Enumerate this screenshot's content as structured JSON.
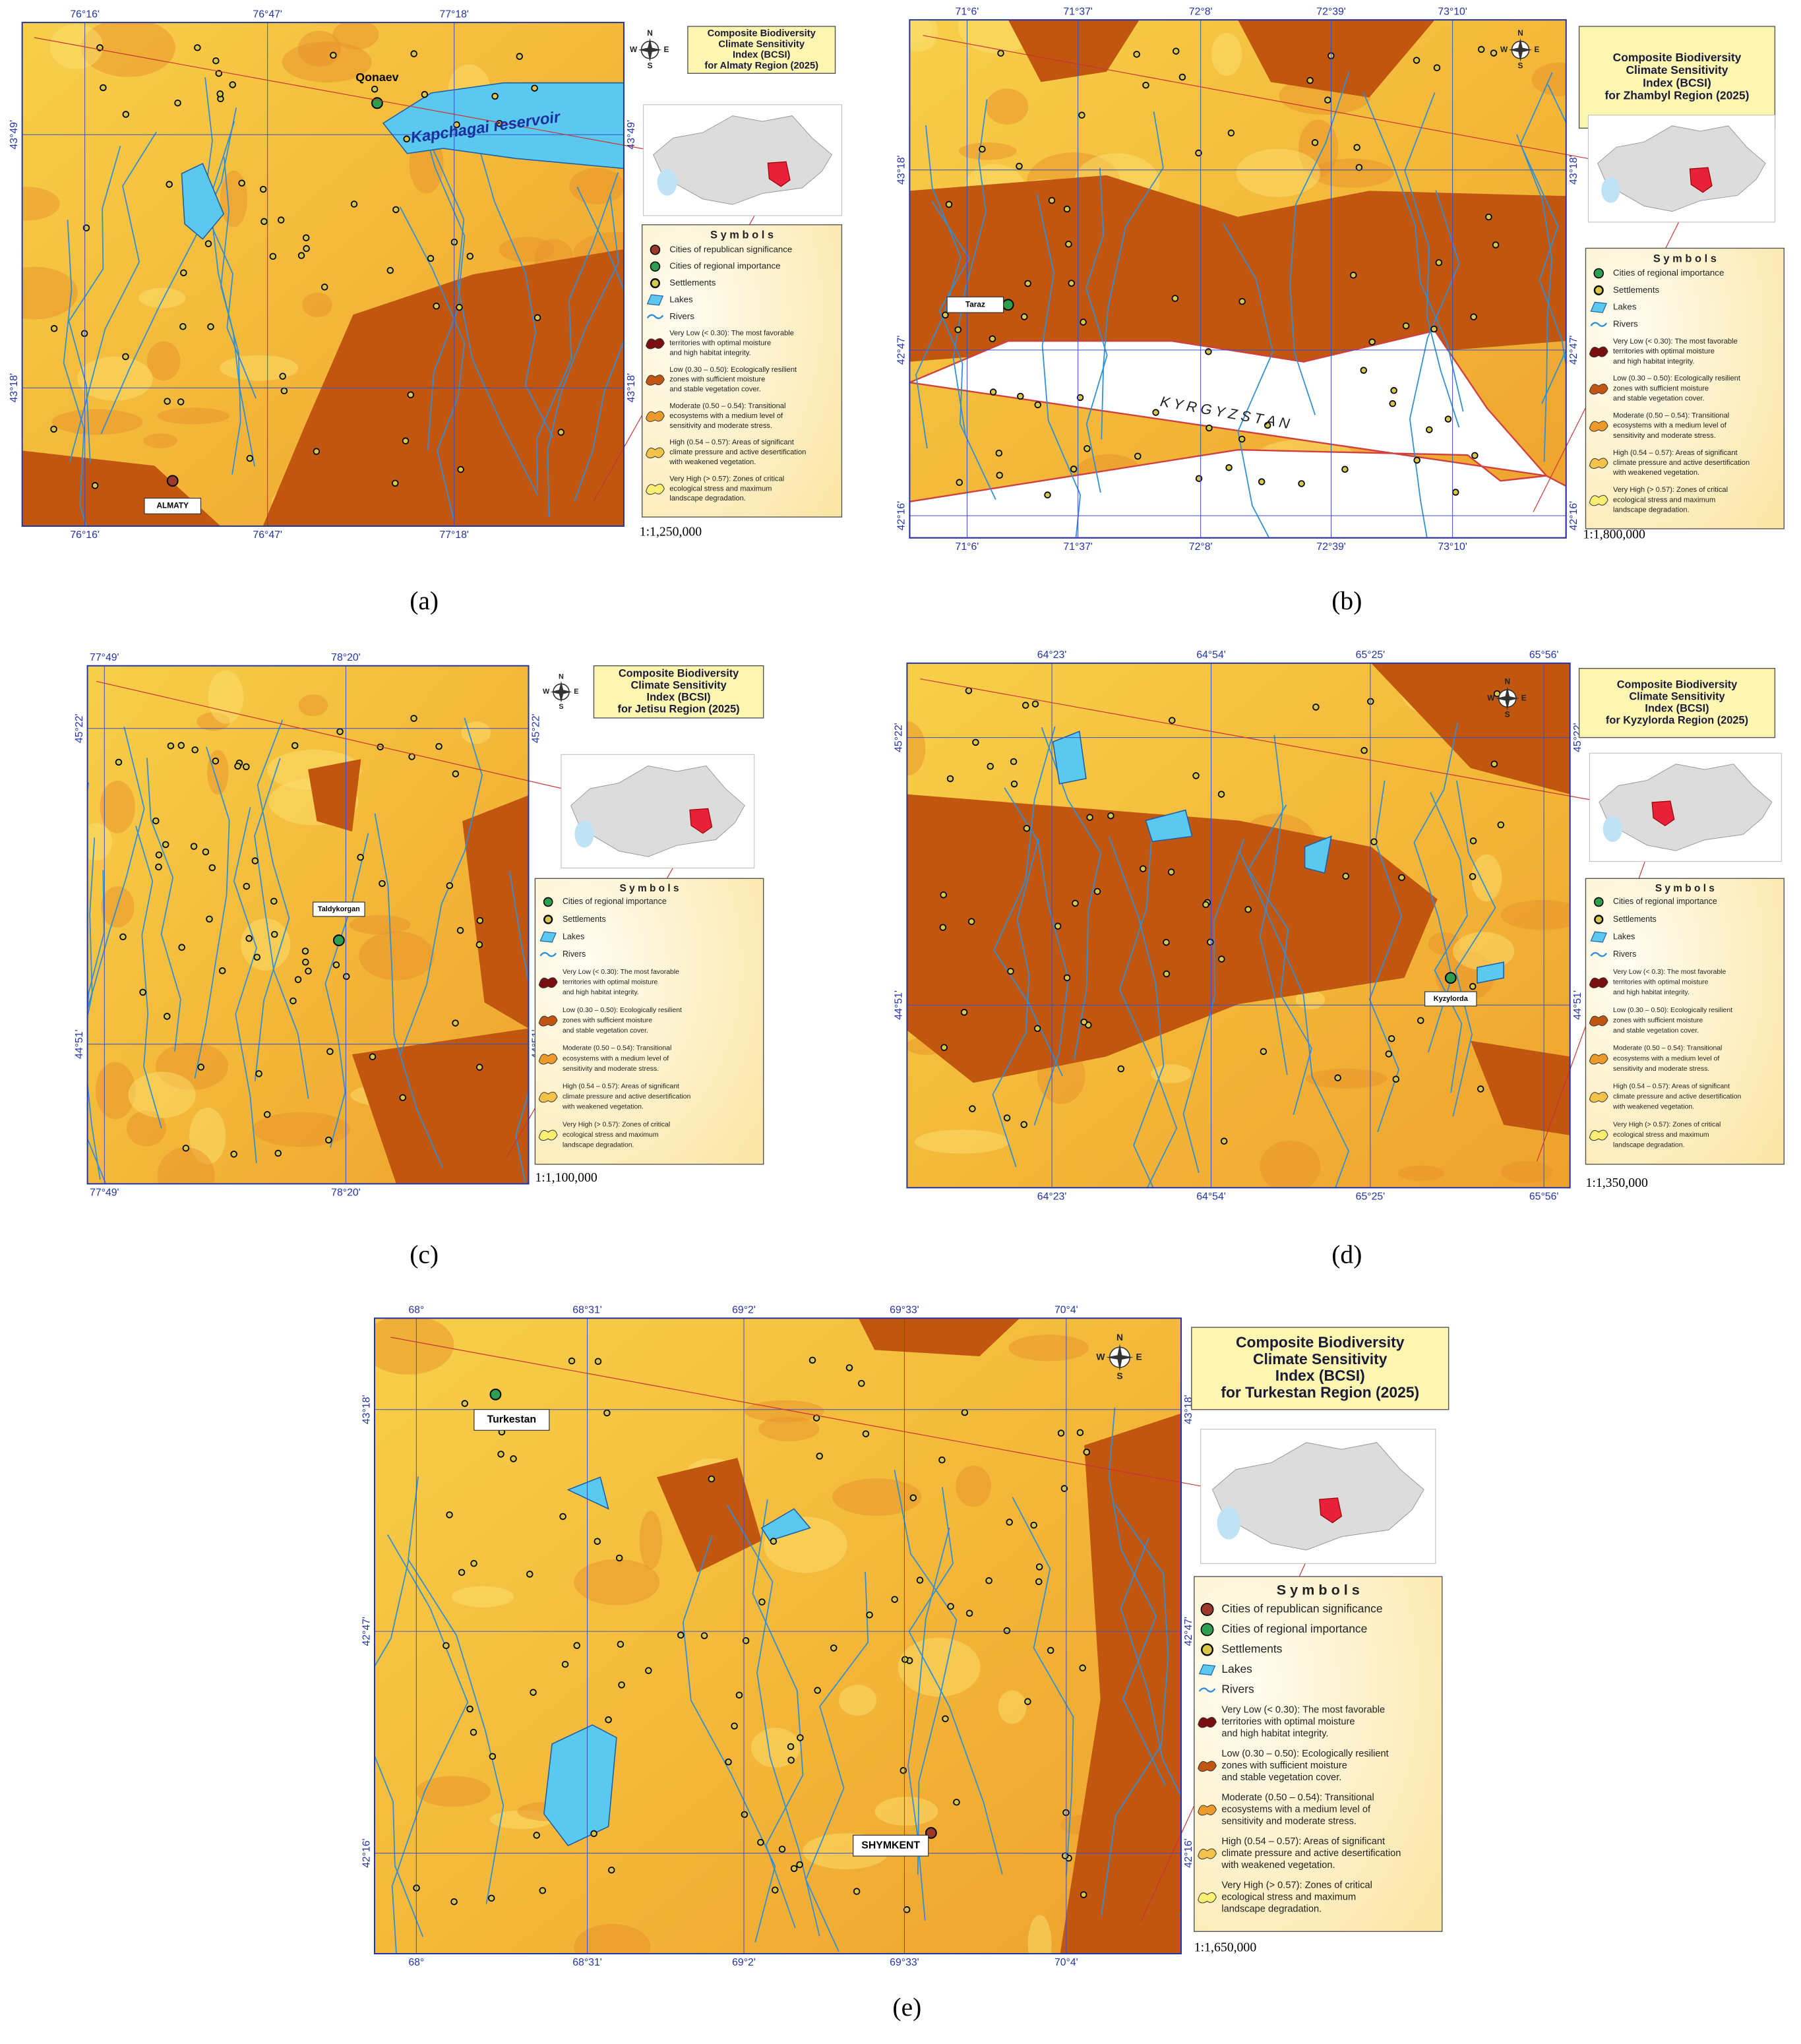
{
  "compass_letters": [
    "N",
    "E",
    "S",
    "W"
  ],
  "legend_heading": "S y m b o l s",
  "panels": [
    {
      "caption": "(a)",
      "title_lines": [
        "Composite Biodiversity",
        "Climate Sensitivity",
        "Index (BCSI)",
        "for Almaty Region (2025)"
      ],
      "lon_ticks": [
        "76°16'",
        "76°47'",
        "77°18'"
      ],
      "lat_ticks": [
        "43°49'",
        "43°18'"
      ],
      "scale": "1:1,250,000",
      "places": [
        "Qonaev",
        "Kapchagai reservoir",
        "ALMATY"
      ],
      "legend": [
        {
          "symbol": "city",
          "color": "#9b3a2a",
          "lines": [
            "Cities of republican significance"
          ]
        },
        {
          "symbol": "city",
          "color": "#2e9e4f",
          "lines": [
            "Cities of regional importance"
          ]
        },
        {
          "symbol": "dot",
          "color": "#000000",
          "lines": [
            "Settlements"
          ]
        },
        {
          "symbol": "lake",
          "color": "#5bc8ef",
          "lines": [
            "Lakes"
          ]
        },
        {
          "symbol": "river",
          "color": "#2f8fd8",
          "lines": [
            "Rivers"
          ]
        },
        {
          "symbol": "patch",
          "color": "#7a0f0f",
          "lines": [
            "Very Low (< 0.30): The most favorable",
            "territories with optimal moisture",
            "and high habitat integrity."
          ]
        },
        {
          "symbol": "patch",
          "color": "#c0560f",
          "lines": [
            "Low (0.30 – 0.50): Ecologically resilient",
            "zones with sufficient moisture",
            "and stable vegetation cover."
          ]
        },
        {
          "symbol": "patch",
          "color": "#ee9a2a",
          "lines": [
            "Moderate (0.50 – 0.54): Transitional",
            "ecosystems with a medium level of",
            "sensitivity and moderate stress."
          ]
        },
        {
          "symbol": "patch",
          "color": "#f3c24a",
          "lines": [
            "High (0.54 – 0.57): Areas of significant",
            "climate pressure and active desertification",
            "with weakened vegetation."
          ]
        },
        {
          "symbol": "patch",
          "color": "#fbef73",
          "lines": [
            "Very High (> 0.57): Zones of critical",
            "ecological stress and maximum",
            "landscape degradation."
          ]
        }
      ]
    },
    {
      "caption": "(b)",
      "title_lines": [
        "Composite Biodiversity",
        "Climate Sensitivity",
        "Index (BCSI)",
        "for Zhambyl Region (2025)"
      ],
      "lon_ticks": [
        "71°6'",
        "71°37'",
        "72°8'",
        "72°39'",
        "73°10'"
      ],
      "lat_ticks": [
        "43°18'",
        "42°47'",
        "42°16'"
      ],
      "scale": "1:1,800,000",
      "places": [
        "Taraz",
        "K Y R G Y Z S T A N"
      ],
      "legend": [
        {
          "symbol": "city",
          "color": "#2e9e4f",
          "lines": [
            "Cities of regional importance"
          ]
        },
        {
          "symbol": "dot",
          "color": "#000000",
          "lines": [
            "Settlements"
          ]
        },
        {
          "symbol": "lake",
          "color": "#5bc8ef",
          "lines": [
            "Lakes"
          ]
        },
        {
          "symbol": "river",
          "color": "#2f8fd8",
          "lines": [
            "Rivers"
          ]
        },
        {
          "symbol": "patch",
          "color": "#7a0f0f",
          "lines": [
            "Very Low (< 0.30): The most favorable",
            "territories with optimal moisture",
            "and high habitat integrity."
          ]
        },
        {
          "symbol": "patch",
          "color": "#c0560f",
          "lines": [
            "Low (0.30 – 0.50): Ecologically resilient",
            "zones with sufficient moisture",
            "and stable vegetation cover."
          ]
        },
        {
          "symbol": "patch",
          "color": "#ee9a2a",
          "lines": [
            "Moderate (0.50 – 0.54): Transitional",
            "ecosystems with a medium level of",
            "sensitivity and moderate stress."
          ]
        },
        {
          "symbol": "patch",
          "color": "#f3c24a",
          "lines": [
            "High (0.54 – 0.57): Areas of significant",
            "climate pressure and active desertification",
            "with weakened vegetation."
          ]
        },
        {
          "symbol": "patch",
          "color": "#fbef73",
          "lines": [
            "Very High (> 0.57): Zones of critical",
            "ecological stress and maximum",
            "landscape degradation."
          ]
        }
      ]
    },
    {
      "caption": "(c)",
      "title_lines": [
        "Composite Biodiversity",
        "Climate Sensitivity",
        "Index (BCSI)",
        "for Jetisu Region (2025)"
      ],
      "lon_ticks": [
        "77°49'",
        "78°20'"
      ],
      "lat_ticks": [
        "45°22'",
        "44°51'"
      ],
      "scale": "1:1,100,000",
      "places": [
        "Taldykorgan"
      ],
      "legend": [
        {
          "symbol": "city",
          "color": "#2e9e4f",
          "lines": [
            "Cities of regional importance"
          ]
        },
        {
          "symbol": "dot",
          "color": "#000000",
          "lines": [
            "Settlements"
          ]
        },
        {
          "symbol": "lake",
          "color": "#5bc8ef",
          "lines": [
            "Lakes"
          ]
        },
        {
          "symbol": "river",
          "color": "#2f8fd8",
          "lines": [
            "Rivers"
          ]
        },
        {
          "symbol": "patch",
          "color": "#7a0f0f",
          "lines": [
            "Very Low (< 0.30): The most favorable",
            "territories with optimal moisture",
            "and high habitat integrity."
          ]
        },
        {
          "symbol": "patch",
          "color": "#c0560f",
          "lines": [
            "Low (0.30 – 0.50): Ecologically resilient",
            "zones with sufficient moisture",
            "and stable vegetation cover."
          ]
        },
        {
          "symbol": "patch",
          "color": "#ee9a2a",
          "lines": [
            "Moderate (0.50 – 0.54): Transitional",
            "ecosystems with a medium level of",
            "sensitivity and moderate stress."
          ]
        },
        {
          "symbol": "patch",
          "color": "#f3c24a",
          "lines": [
            "High (0.54 – 0.57): Areas of significant",
            "climate pressure and active desertification",
            "with weakened vegetation."
          ]
        },
        {
          "symbol": "patch",
          "color": "#fbef73",
          "lines": [
            "Very High (> 0.57): Zones of critical",
            "ecological stress and maximum",
            "landscape degradation."
          ]
        }
      ]
    },
    {
      "caption": "(d)",
      "title_lines": [
        "Composite Biodiversity",
        "Climate Sensitivity",
        "Index (BCSI)",
        "for Kyzylorda Region (2025)"
      ],
      "lon_ticks": [
        "64°23'",
        "64°54'",
        "65°25'",
        "65°56'"
      ],
      "lat_ticks": [
        "45°22'",
        "44°51'"
      ],
      "scale": "1:1,350,000",
      "places": [
        "Kyzylorda"
      ],
      "legend": [
        {
          "symbol": "city",
          "color": "#2e9e4f",
          "lines": [
            "Cities of regional importance"
          ]
        },
        {
          "symbol": "dot",
          "color": "#000000",
          "lines": [
            "Settlements"
          ]
        },
        {
          "symbol": "lake",
          "color": "#5bc8ef",
          "lines": [
            "Lakes"
          ]
        },
        {
          "symbol": "river",
          "color": "#2f8fd8",
          "lines": [
            "Rivers"
          ]
        },
        {
          "symbol": "patch",
          "color": "#7a0f0f",
          "lines": [
            "Very Low (< 0.3): The most favorable",
            "territories with optimal moisture",
            "and high habitat integrity."
          ]
        },
        {
          "symbol": "patch",
          "color": "#c0560f",
          "lines": [
            "Low (0.30 – 0.50): Ecologically resilient",
            "zones with sufficient moisture",
            "and stable vegetation cover."
          ]
        },
        {
          "symbol": "patch",
          "color": "#ee9a2a",
          "lines": [
            "Moderate (0.50 – 0.54): Transitional",
            "ecosystems with a medium level of",
            "sensitivity and moderate stress."
          ]
        },
        {
          "symbol": "patch",
          "color": "#f3c24a",
          "lines": [
            "High (0.54 – 0.57): Areas of significant",
            "climate pressure and active desertification",
            "with weakened vegetation."
          ]
        },
        {
          "symbol": "patch",
          "color": "#fbef73",
          "lines": [
            "Very High (> 0.57): Zones of critical",
            "ecological stress and maximum",
            "landscape degradation."
          ]
        }
      ]
    },
    {
      "caption": "(e)",
      "title_lines": [
        "Composite Biodiversity",
        "Climate Sensitivity",
        "Index (BCSI)",
        "for Turkestan Region (2025)"
      ],
      "lon_ticks": [
        "68°",
        "68°31'",
        "69°2'",
        "69°33'",
        "70°4'"
      ],
      "lat_ticks": [
        "43°18'",
        "42°47'",
        "42°16'"
      ],
      "scale": "1:1,650,000",
      "places": [
        "Turkestan",
        "SHYMKENT"
      ],
      "legend": [
        {
          "symbol": "city",
          "color": "#9b3a2a",
          "lines": [
            "Cities of republican significance"
          ]
        },
        {
          "symbol": "city",
          "color": "#2e9e4f",
          "lines": [
            "Cities of regional importance"
          ]
        },
        {
          "symbol": "dot",
          "color": "#000000",
          "lines": [
            "Settlements"
          ]
        },
        {
          "symbol": "lake",
          "color": "#5bc8ef",
          "lines": [
            "Lakes"
          ]
        },
        {
          "symbol": "river",
          "color": "#2f8fd8",
          "lines": [
            "Rivers"
          ]
        },
        {
          "symbol": "patch",
          "color": "#7a0f0f",
          "lines": [
            "Very Low (< 0.30): The most favorable",
            "territories with optimal moisture",
            "and high habitat integrity."
          ]
        },
        {
          "symbol": "patch",
          "color": "#c0560f",
          "lines": [
            "Low (0.30 – 0.50): Ecologically resilient",
            "zones with sufficient moisture",
            "and stable vegetation cover."
          ]
        },
        {
          "symbol": "patch",
          "color": "#ee9a2a",
          "lines": [
            "Moderate (0.50 – 0.54): Transitional",
            "ecosystems with a medium level of",
            "sensitivity and moderate stress."
          ]
        },
        {
          "symbol": "patch",
          "color": "#f3c24a",
          "lines": [
            "High (0.54 – 0.57): Areas of significant",
            "climate pressure and active desertification",
            "with weakened vegetation."
          ]
        },
        {
          "symbol": "patch",
          "color": "#fbef73",
          "lines": [
            "Very High (> 0.57): Zones of critical",
            "ecological stress and maximum",
            "landscape degradation."
          ]
        }
      ]
    }
  ]
}
